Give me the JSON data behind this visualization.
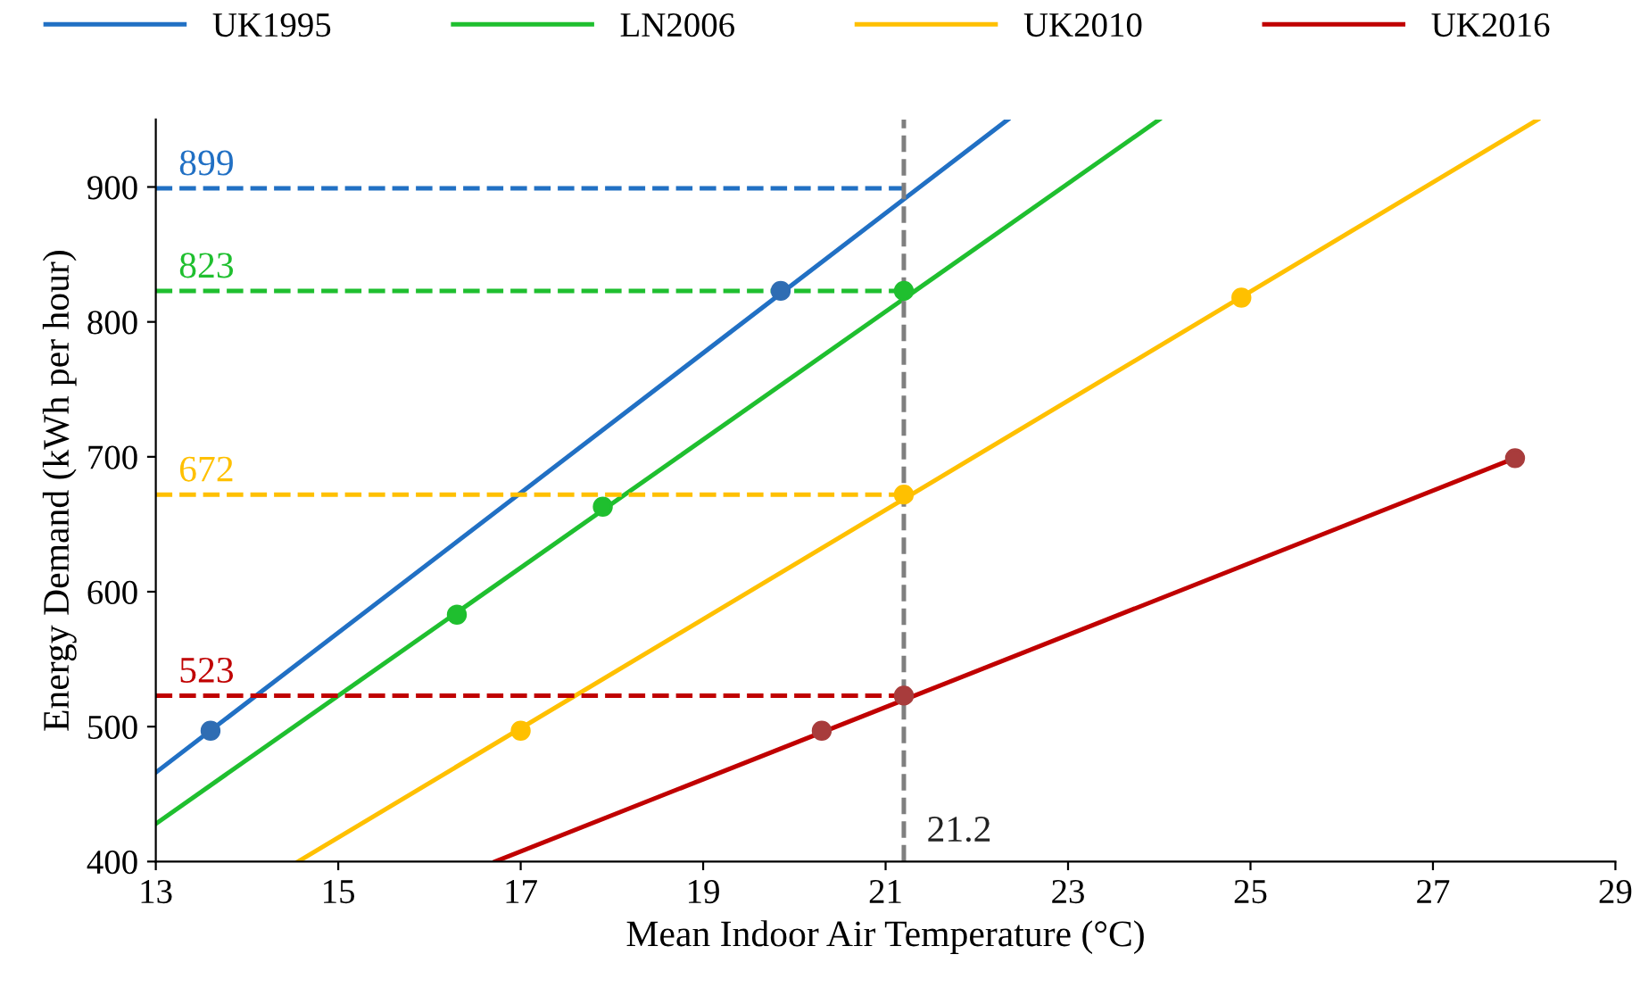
{
  "chart_data": {
    "type": "line",
    "xlabel": "Mean Indoor Air Temperature (°C)",
    "ylabel": "Energy Demand (kWh per hour)",
    "xlim": [
      13,
      29
    ],
    "xticks": [
      13,
      15,
      17,
      19,
      21,
      23,
      25,
      27,
      29
    ],
    "ylim": [
      400,
      950
    ],
    "yticks": [
      400,
      500,
      600,
      700,
      800,
      900
    ],
    "grid": false,
    "legend": "top",
    "series": [
      {
        "name": "UK1995",
        "color": "#2170c4",
        "x": [
          13,
          22.34
        ],
        "values": [
          466,
          950
        ],
        "line_style": "solid"
      },
      {
        "name": "LN2006",
        "color": "#1fbf2f",
        "x": [
          13,
          24.0
        ],
        "values": [
          428,
          950
        ],
        "line_style": "solid"
      },
      {
        "name": "UK2010",
        "color": "#ffc000",
        "x": [
          14.56,
          28.15
        ],
        "values": [
          400,
          950
        ],
        "line_style": "solid"
      },
      {
        "name": "UK2016",
        "color": "#c00000",
        "x": [
          16.72,
          27.9
        ],
        "values": [
          400,
          699
        ],
        "line_style": "solid"
      },
      {
        "type": "scatter",
        "color": "#2f6db3",
        "marker": "circle",
        "x": [
          13.6,
          19.85
        ],
        "values": [
          497,
          823
        ]
      },
      {
        "type": "scatter",
        "color": "#1fbf2f",
        "marker": "circle",
        "x": [
          16.3,
          17.9,
          21.2
        ],
        "values": [
          583,
          663,
          823
        ]
      },
      {
        "type": "scatter",
        "color": "#ffc000",
        "marker": "circle",
        "x": [
          17.0,
          21.2,
          24.9
        ],
        "values": [
          497,
          672,
          818
        ]
      },
      {
        "type": "scatter",
        "color": "#a83c3c",
        "marker": "circle",
        "x": [
          20.3,
          21.2,
          27.9
        ],
        "values": [
          497,
          523,
          699
        ]
      },
      {
        "name": "899",
        "color": "#2170c4",
        "x": [
          13,
          21.2
        ],
        "values": [
          899,
          899
        ],
        "line_style": "dashed"
      },
      {
        "name": "823",
        "color": "#1fbf2f",
        "x": [
          13,
          21.2
        ],
        "values": [
          823,
          823
        ],
        "line_style": "dashed"
      },
      {
        "name": "672",
        "color": "#ffc000",
        "x": [
          13,
          21.2
        ],
        "values": [
          672,
          672
        ],
        "line_style": "dashed"
      },
      {
        "name": "523",
        "color": "#c00000",
        "x": [
          13,
          21.2
        ],
        "values": [
          523,
          523
        ],
        "line_style": "dashed"
      }
    ],
    "ref_lines": [
      {
        "axis": "x",
        "value": 21.2,
        "label": "21.2",
        "color": "#7f7f7f",
        "line_style": "dashed"
      }
    ]
  }
}
